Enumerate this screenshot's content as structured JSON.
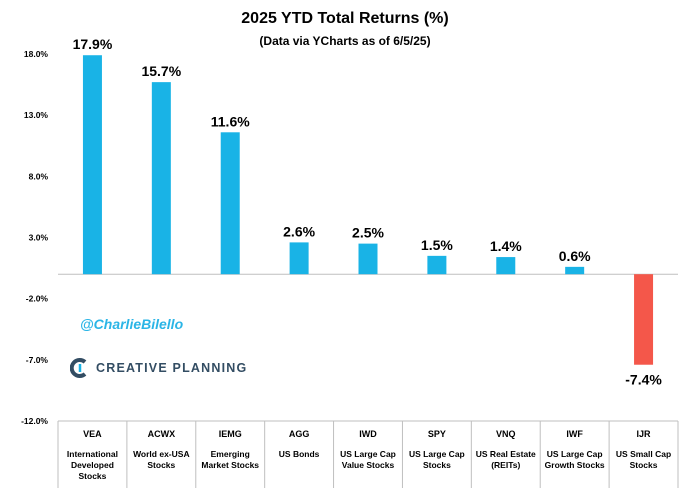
{
  "header": {
    "title": "2025 YTD Total Returns (%)",
    "subtitle": "(Data via YCharts as of 6/5/25)"
  },
  "annotations": {
    "handle": "@CharlieBilello",
    "brand": "CREATIVE PLANNING"
  },
  "colors": {
    "positive": "#19b3e6",
    "negative": "#f4574a",
    "handle": "#2bb5e6",
    "brand_text": "#334d63",
    "grid": "#bfbfbf"
  },
  "chart_data": {
    "type": "bar",
    "title": "2025 YTD Total Returns (%)",
    "subtitle": "(Data via YCharts as of 6/5/25)",
    "xlabel": "",
    "ylabel": "",
    "ylim": [
      -12,
      18
    ],
    "yticks": [
      18,
      13,
      8,
      3,
      -2,
      -7,
      -12
    ],
    "ytick_labels": [
      "18.0%",
      "13.0%",
      "8.0%",
      "3.0%",
      "-2.0%",
      "-7.0%",
      "-12.0%"
    ],
    "grid": false,
    "legend": "none",
    "categories": [
      {
        "ticker": "VEA",
        "desc": [
          "International",
          "Developed",
          "Stocks"
        ]
      },
      {
        "ticker": "ACWX",
        "desc": [
          "World ex-USA",
          "Stocks"
        ]
      },
      {
        "ticker": "IEMG",
        "desc": [
          "Emerging",
          "Market Stocks"
        ]
      },
      {
        "ticker": "AGG",
        "desc": [
          "US Bonds"
        ]
      },
      {
        "ticker": "IWD",
        "desc": [
          "US Large Cap",
          "Value Stocks"
        ]
      },
      {
        "ticker": "SPY",
        "desc": [
          "US Large Cap",
          "Stocks"
        ]
      },
      {
        "ticker": "VNQ",
        "desc": [
          "US Real Estate",
          "(REITs)"
        ]
      },
      {
        "ticker": "IWF",
        "desc": [
          "US Large Cap",
          "Growth Stocks"
        ]
      },
      {
        "ticker": "IJR",
        "desc": [
          "US Small Cap",
          "Stocks"
        ]
      }
    ],
    "values": [
      17.9,
      15.7,
      11.6,
      2.6,
      2.5,
      1.5,
      1.4,
      0.6,
      -7.4
    ],
    "value_labels": [
      "17.9%",
      "15.7%",
      "11.6%",
      "2.6%",
      "2.5%",
      "1.5%",
      "1.4%",
      "0.6%",
      "-7.4%"
    ]
  }
}
